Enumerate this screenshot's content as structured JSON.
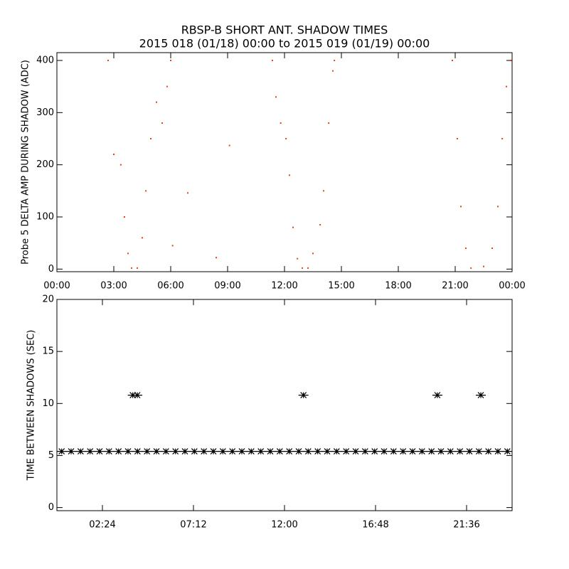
{
  "chart_data": [
    {
      "type": "scatter",
      "title": "RBSP-B SHORT ANT. SHADOW TIMES",
      "subtitle": "2015 018 (01/18) 00:00 to 2015 019 (01/19) 00:00",
      "y_label": "Probe 5 DELTA AMP DURING SHADOW (ADC)",
      "marker": "dot",
      "color": "#e8401c",
      "x": [
        2.7,
        3.0,
        3.37,
        3.56,
        3.75,
        3.94,
        4.24,
        4.5,
        4.69,
        4.95,
        5.25,
        5.55,
        5.81,
        6.0,
        6.1,
        6.9,
        8.4,
        9.1,
        11.36,
        11.55,
        11.8,
        12.08,
        12.26,
        12.45,
        12.68,
        12.94,
        13.24,
        13.5,
        13.88,
        14.06,
        14.33,
        14.55,
        14.63,
        20.85,
        21.11,
        21.3,
        21.56,
        21.83,
        22.5,
        22.95,
        23.25,
        23.48,
        23.7,
        23.93
      ],
      "values": [
        400,
        220,
        200,
        100,
        30,
        2,
        2,
        60,
        150,
        250,
        320,
        280,
        350,
        400,
        45,
        146,
        22,
        237,
        400,
        330,
        280,
        250,
        180,
        80,
        20,
        2,
        2,
        30,
        85,
        150,
        280,
        380,
        400,
        400,
        250,
        120,
        40,
        2,
        5,
        40,
        120,
        250,
        350,
        400
      ],
      "xlim": [
        0,
        24
      ],
      "ylim": [
        -5,
        415
      ],
      "xticks": [
        {
          "value": 0,
          "label": "00:00"
        },
        {
          "value": 3,
          "label": "03:00"
        },
        {
          "value": 6,
          "label": "06:00"
        },
        {
          "value": 9,
          "label": "09:00"
        },
        {
          "value": 12,
          "label": "12:00"
        },
        {
          "value": 15,
          "label": "15:00"
        },
        {
          "value": 18,
          "label": "18:00"
        },
        {
          "value": 21,
          "label": "21:00"
        },
        {
          "value": 24,
          "label": "00:00"
        }
      ],
      "yticks": [
        0,
        100,
        200,
        300,
        400
      ]
    },
    {
      "type": "scatter",
      "y_label": "TIME BETWEEN SHADOWS (SEC)",
      "marker": "asterisk",
      "color": "#000000",
      "x": [
        0.25,
        0.75,
        1.25,
        1.75,
        2.25,
        2.75,
        3.25,
        3.75,
        4.25,
        4.75,
        5.25,
        5.75,
        6.25,
        6.75,
        7.25,
        7.75,
        8.25,
        8.75,
        9.25,
        9.75,
        10.25,
        10.75,
        11.25,
        11.75,
        12.25,
        12.75,
        13.25,
        13.75,
        14.25,
        14.75,
        15.25,
        15.75,
        16.25,
        16.75,
        17.25,
        17.75,
        18.25,
        18.75,
        19.25,
        19.75,
        20.25,
        20.75,
        21.25,
        21.75,
        22.25,
        22.75,
        23.25,
        23.75,
        4.0,
        4.24,
        13.0,
        20.06,
        22.35
      ],
      "values": [
        5.4,
        5.4,
        5.4,
        5.4,
        5.4,
        5.4,
        5.4,
        5.4,
        5.4,
        5.4,
        5.4,
        5.4,
        5.4,
        5.4,
        5.4,
        5.4,
        5.4,
        5.4,
        5.4,
        5.4,
        5.4,
        5.4,
        5.4,
        5.4,
        5.4,
        5.4,
        5.4,
        5.4,
        5.4,
        5.4,
        5.4,
        5.4,
        5.4,
        5.4,
        5.4,
        5.4,
        5.4,
        5.4,
        5.4,
        5.4,
        5.4,
        5.4,
        5.4,
        5.4,
        5.4,
        5.4,
        5.4,
        5.4,
        10.8,
        10.8,
        10.8,
        10.8,
        10.8
      ],
      "xlim": [
        0,
        24
      ],
      "ylim": [
        -0.3,
        20
      ],
      "xticks": [
        {
          "value": 2.4,
          "label": "02:24"
        },
        {
          "value": 7.2,
          "label": "07:12"
        },
        {
          "value": 12,
          "label": "12:00"
        },
        {
          "value": 16.8,
          "label": "16:48"
        },
        {
          "value": 21.6,
          "label": "21:36"
        }
      ],
      "yticks": [
        0,
        5,
        10,
        15,
        20
      ]
    }
  ]
}
